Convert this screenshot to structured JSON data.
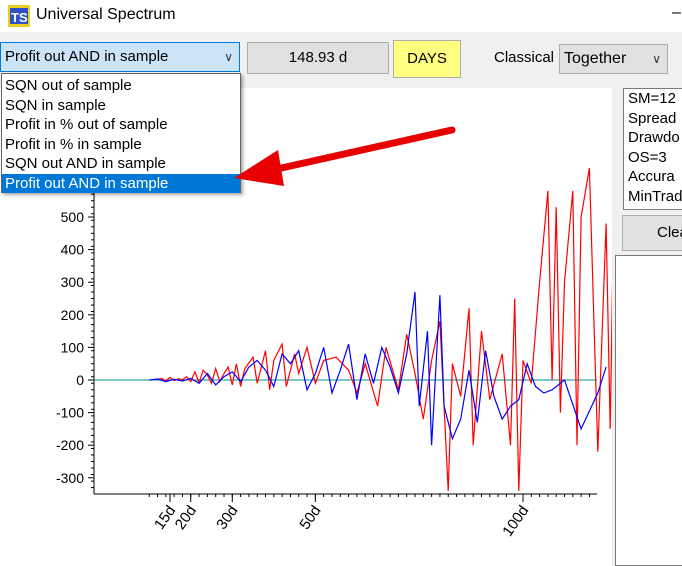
{
  "window": {
    "title": "Universal Spectrum",
    "minimize_glyph": "–"
  },
  "toolbar": {
    "metric_select": {
      "value": "Profit out AND in sample"
    },
    "days_value": "148.93 d",
    "days_button": "DAYS",
    "mode_label": "Classical",
    "together_select": {
      "value": "Together"
    }
  },
  "dropdown": {
    "items": [
      {
        "label": "SQN out of sample"
      },
      {
        "label": "SQN in sample"
      },
      {
        "label": "Profit in % out of sample"
      },
      {
        "label": "Profit in % in sample"
      },
      {
        "label": "SQN out AND in sample"
      },
      {
        "label": "Profit out AND in sample",
        "selected": true
      }
    ]
  },
  "info_panel": {
    "lines": [
      "SM=12",
      "Spread",
      "Drawdo",
      "OS=3",
      "Accura",
      "MinTrad"
    ]
  },
  "clear_button": "Clea",
  "colors": {
    "selected": "#0078d7",
    "series_a": "#ff0000",
    "series_b": "#0000ff",
    "zero_line": "#009090",
    "arrow": "#e80000",
    "days_btn": "#ffff80"
  },
  "chart_data": {
    "type": "line",
    "y_ticks": [
      500,
      400,
      300,
      200,
      100,
      0,
      -100,
      -200,
      -300
    ],
    "x_ticks": [
      {
        "label": "15d",
        "days": 15
      },
      {
        "label": "20d",
        "days": 20
      },
      {
        "label": "30d",
        "days": 30
      },
      {
        "label": "50d",
        "days": 50
      },
      {
        "label": "100d",
        "days": 100
      }
    ],
    "ylim": [
      -350,
      900
    ],
    "xlim_days": [
      9,
      140
    ],
    "series": [
      {
        "color": "red",
        "points": [
          [
            12,
            2
          ],
          [
            13,
            5
          ],
          [
            14,
            -3
          ],
          [
            15,
            8
          ],
          [
            16,
            -2
          ],
          [
            17,
            4
          ],
          [
            18,
            1
          ],
          [
            19,
            10
          ],
          [
            20,
            -5
          ],
          [
            21,
            25
          ],
          [
            22,
            -8
          ],
          [
            23,
            30
          ],
          [
            24,
            15
          ],
          [
            25,
            -10
          ],
          [
            26,
            35
          ],
          [
            27,
            -5
          ],
          [
            28,
            20
          ],
          [
            29,
            40
          ],
          [
            30,
            -15
          ],
          [
            31,
            50
          ],
          [
            32,
            -20
          ],
          [
            33,
            35
          ],
          [
            35,
            70
          ],
          [
            36,
            -10
          ],
          [
            38,
            90
          ],
          [
            39,
            -30
          ],
          [
            40,
            60
          ],
          [
            42,
            110
          ],
          [
            43,
            -20
          ],
          [
            45,
            80
          ],
          [
            46,
            20
          ],
          [
            48,
            100
          ],
          [
            50,
            -10
          ],
          [
            52,
            60
          ],
          [
            55,
            70
          ],
          [
            58,
            30
          ],
          [
            60,
            -40
          ],
          [
            62,
            50
          ],
          [
            65,
            -80
          ],
          [
            67,
            100
          ],
          [
            70,
            -30
          ],
          [
            72,
            140
          ],
          [
            74,
            20
          ],
          [
            76,
            -120
          ],
          [
            78,
            60
          ],
          [
            80,
            180
          ],
          [
            82,
            -340
          ],
          [
            83,
            50
          ],
          [
            85,
            -50
          ],
          [
            87,
            220
          ],
          [
            88,
            -200
          ],
          [
            90,
            150
          ],
          [
            92,
            -60
          ],
          [
            95,
            80
          ],
          [
            97,
            -200
          ],
          [
            98,
            250
          ],
          [
            99,
            -340
          ],
          [
            100,
            60
          ],
          [
            102,
            -10
          ],
          [
            104,
            300
          ],
          [
            106,
            580
          ],
          [
            107,
            0
          ],
          [
            108,
            530
          ],
          [
            109,
            -100
          ],
          [
            110,
            300
          ],
          [
            112,
            580
          ],
          [
            113,
            -200
          ],
          [
            114,
            500
          ],
          [
            116,
            650
          ],
          [
            118,
            -220
          ],
          [
            120,
            480
          ],
          [
            121,
            -150
          ],
          [
            122,
            650
          ],
          [
            124,
            900
          ],
          [
            125,
            500
          ],
          [
            126,
            500
          ],
          [
            127,
            400
          ]
        ]
      },
      {
        "color": "blue",
        "points": [
          [
            10,
            0
          ],
          [
            12,
            3
          ],
          [
            14,
            -5
          ],
          [
            16,
            2
          ],
          [
            18,
            -3
          ],
          [
            20,
            5
          ],
          [
            22,
            -10
          ],
          [
            24,
            20
          ],
          [
            26,
            -15
          ],
          [
            28,
            10
          ],
          [
            30,
            25
          ],
          [
            32,
            -5
          ],
          [
            34,
            40
          ],
          [
            36,
            60
          ],
          [
            38,
            30
          ],
          [
            40,
            -20
          ],
          [
            42,
            80
          ],
          [
            44,
            50
          ],
          [
            46,
            90
          ],
          [
            48,
            -30
          ],
          [
            50,
            20
          ],
          [
            52,
            100
          ],
          [
            54,
            -40
          ],
          [
            56,
            30
          ],
          [
            58,
            110
          ],
          [
            60,
            -60
          ],
          [
            62,
            80
          ],
          [
            64,
            -10
          ],
          [
            66,
            100
          ],
          [
            68,
            40
          ],
          [
            70,
            -40
          ],
          [
            72,
            80
          ],
          [
            74,
            270
          ],
          [
            75,
            -80
          ],
          [
            77,
            150
          ],
          [
            78,
            -200
          ],
          [
            80,
            260
          ],
          [
            81,
            -80
          ],
          [
            83,
            -180
          ],
          [
            85,
            -120
          ],
          [
            87,
            30
          ],
          [
            89,
            -130
          ],
          [
            91,
            90
          ],
          [
            93,
            -50
          ],
          [
            95,
            -120
          ],
          [
            97,
            -80
          ],
          [
            99,
            -60
          ],
          [
            101,
            50
          ],
          [
            103,
            -20
          ],
          [
            105,
            -40
          ],
          [
            107,
            -30
          ],
          [
            110,
            0
          ],
          [
            114,
            -150
          ],
          [
            118,
            -40
          ],
          [
            120,
            40
          ]
        ]
      }
    ]
  }
}
